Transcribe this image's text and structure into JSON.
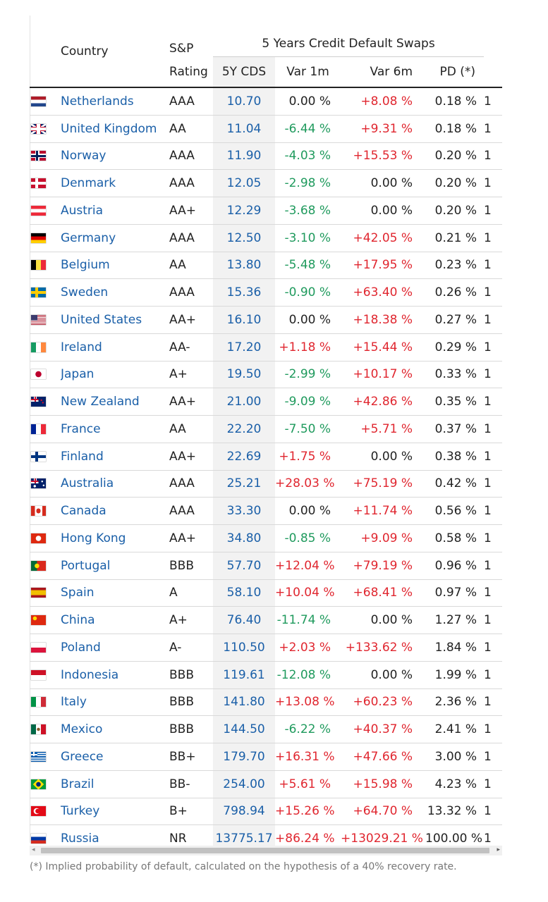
{
  "header": {
    "country": "Country",
    "rating_top": "S&P",
    "rating_bottom": "Rating",
    "group": "5 Years Credit Default Swaps",
    "cds": "5Y CDS",
    "var1m": "Var 1m",
    "var6m": "Var 6m",
    "pd": "PD (*)"
  },
  "rows": [
    {
      "country": "Netherlands",
      "flag": "netherlands-flag-icon",
      "rating": "AAA",
      "cds": "10.70",
      "var1m": "0.00 %",
      "var6m": "+8.08 %",
      "pd": "0.18 %",
      "extra": "1"
    },
    {
      "country": "United Kingdom",
      "flag": "united-kingdom-flag-icon",
      "rating": "AA",
      "cds": "11.04",
      "var1m": "-6.44 %",
      "var6m": "+9.31 %",
      "pd": "0.18 %",
      "extra": "1"
    },
    {
      "country": "Norway",
      "flag": "norway-flag-icon",
      "rating": "AAA",
      "cds": "11.90",
      "var1m": "-4.03 %",
      "var6m": "+15.53 %",
      "pd": "0.20 %",
      "extra": "1"
    },
    {
      "country": "Denmark",
      "flag": "denmark-flag-icon",
      "rating": "AAA",
      "cds": "12.05",
      "var1m": "-2.98 %",
      "var6m": "0.00 %",
      "pd": "0.20 %",
      "extra": "1"
    },
    {
      "country": "Austria",
      "flag": "austria-flag-icon",
      "rating": "AA+",
      "cds": "12.29",
      "var1m": "-3.68 %",
      "var6m": "0.00 %",
      "pd": "0.20 %",
      "extra": "1"
    },
    {
      "country": "Germany",
      "flag": "germany-flag-icon",
      "rating": "AAA",
      "cds": "12.50",
      "var1m": "-3.10 %",
      "var6m": "+42.05 %",
      "pd": "0.21 %",
      "extra": "1"
    },
    {
      "country": "Belgium",
      "flag": "belgium-flag-icon",
      "rating": "AA",
      "cds": "13.80",
      "var1m": "-5.48 %",
      "var6m": "+17.95 %",
      "pd": "0.23 %",
      "extra": "1"
    },
    {
      "country": "Sweden",
      "flag": "sweden-flag-icon",
      "rating": "AAA",
      "cds": "15.36",
      "var1m": "-0.90 %",
      "var6m": "+63.40 %",
      "pd": "0.26 %",
      "extra": "1"
    },
    {
      "country": "United States",
      "flag": "united-states-flag-icon",
      "rating": "AA+",
      "cds": "16.10",
      "var1m": "0.00 %",
      "var6m": "+18.38 %",
      "pd": "0.27 %",
      "extra": "1"
    },
    {
      "country": "Ireland",
      "flag": "ireland-flag-icon",
      "rating": "AA-",
      "cds": "17.20",
      "var1m": "+1.18 %",
      "var6m": "+15.44 %",
      "pd": "0.29 %",
      "extra": "1"
    },
    {
      "country": "Japan",
      "flag": "japan-flag-icon",
      "rating": "A+",
      "cds": "19.50",
      "var1m": "-2.99 %",
      "var6m": "+10.17 %",
      "pd": "0.33 %",
      "extra": "1"
    },
    {
      "country": "New Zealand",
      "flag": "new-zealand-flag-icon",
      "rating": "AA+",
      "cds": "21.00",
      "var1m": "-9.09 %",
      "var6m": "+42.86 %",
      "pd": "0.35 %",
      "extra": "1"
    },
    {
      "country": "France",
      "flag": "france-flag-icon",
      "rating": "AA",
      "cds": "22.20",
      "var1m": "-7.50 %",
      "var6m": "+5.71 %",
      "pd": "0.37 %",
      "extra": "1"
    },
    {
      "country": "Finland",
      "flag": "finland-flag-icon",
      "rating": "AA+",
      "cds": "22.69",
      "var1m": "+1.75 %",
      "var6m": "0.00 %",
      "pd": "0.38 %",
      "extra": "1"
    },
    {
      "country": "Australia",
      "flag": "australia-flag-icon",
      "rating": "AAA",
      "cds": "25.21",
      "var1m": "+28.03 %",
      "var6m": "+75.19 %",
      "pd": "0.42 %",
      "extra": "1"
    },
    {
      "country": "Canada",
      "flag": "canada-flag-icon",
      "rating": "AAA",
      "cds": "33.30",
      "var1m": "0.00 %",
      "var6m": "+11.74 %",
      "pd": "0.56 %",
      "extra": "1"
    },
    {
      "country": "Hong Kong",
      "flag": "hong-kong-flag-icon",
      "rating": "AA+",
      "cds": "34.80",
      "var1m": "-0.85 %",
      "var6m": "+9.09 %",
      "pd": "0.58 %",
      "extra": "1"
    },
    {
      "country": "Portugal",
      "flag": "portugal-flag-icon",
      "rating": "BBB",
      "cds": "57.70",
      "var1m": "+12.04 %",
      "var6m": "+79.19 %",
      "pd": "0.96 %",
      "extra": "1"
    },
    {
      "country": "Spain",
      "flag": "spain-flag-icon",
      "rating": "A",
      "cds": "58.10",
      "var1m": "+10.04 %",
      "var6m": "+68.41 %",
      "pd": "0.97 %",
      "extra": "1"
    },
    {
      "country": "China",
      "flag": "china-flag-icon",
      "rating": "A+",
      "cds": "76.40",
      "var1m": "-11.74 %",
      "var6m": "0.00 %",
      "pd": "1.27 %",
      "extra": "1"
    },
    {
      "country": "Poland",
      "flag": "poland-flag-icon",
      "rating": "A-",
      "cds": "110.50",
      "var1m": "+2.03 %",
      "var6m": "+133.62 %",
      "pd": "1.84 %",
      "extra": "1"
    },
    {
      "country": "Indonesia",
      "flag": "indonesia-flag-icon",
      "rating": "BBB",
      "cds": "119.61",
      "var1m": "-12.08 %",
      "var6m": "0.00 %",
      "pd": "1.99 %",
      "extra": "1"
    },
    {
      "country": "Italy",
      "flag": "italy-flag-icon",
      "rating": "BBB",
      "cds": "141.80",
      "var1m": "+13.08 %",
      "var6m": "+60.23 %",
      "pd": "2.36 %",
      "extra": "1"
    },
    {
      "country": "Mexico",
      "flag": "mexico-flag-icon",
      "rating": "BBB",
      "cds": "144.50",
      "var1m": "-6.22 %",
      "var6m": "+40.37 %",
      "pd": "2.41 %",
      "extra": "1"
    },
    {
      "country": "Greece",
      "flag": "greece-flag-icon",
      "rating": "BB+",
      "cds": "179.70",
      "var1m": "+16.31 %",
      "var6m": "+47.66 %",
      "pd": "3.00 %",
      "extra": "1"
    },
    {
      "country": "Brazil",
      "flag": "brazil-flag-icon",
      "rating": "BB-",
      "cds": "254.00",
      "var1m": "+5.61 %",
      "var6m": "+15.98 %",
      "pd": "4.23 %",
      "extra": "1"
    },
    {
      "country": "Turkey",
      "flag": "turkey-flag-icon",
      "rating": "B+",
      "cds": "798.94",
      "var1m": "+15.26 %",
      "var6m": "+64.70 %",
      "pd": "13.32 %",
      "extra": "1"
    },
    {
      "country": "Russia",
      "flag": "russia-flag-icon",
      "rating": "NR",
      "cds": "13775.17",
      "var1m": "+86.24 %",
      "var6m": "+13029.21 %",
      "pd": "100.00 %",
      "extra": "1"
    }
  ],
  "colors": {
    "link": "#1a5fa8",
    "positive": "#e0262f",
    "negative": "#1f9a5d",
    "neutral": "#222222",
    "cds_column_bg": "#f2f2f2"
  },
  "scrollbar": {
    "left_arrow": "◂",
    "right_arrow": "▸"
  },
  "footnote": "(*) Implied probability of default, calculated on the hypothesis of a 40% recovery rate."
}
